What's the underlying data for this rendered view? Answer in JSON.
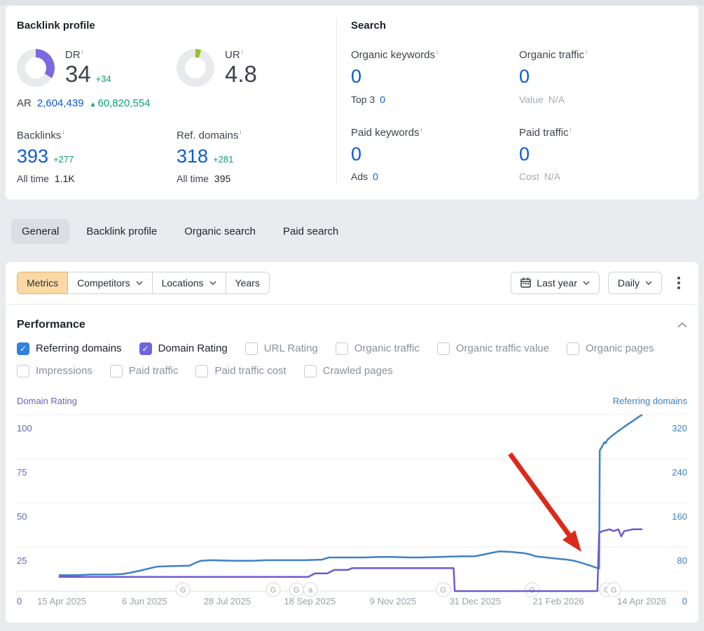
{
  "info_icon": "i",
  "colors": {
    "accent_blue": "#0b5cd5",
    "accent_green": "#0e9f6e",
    "dr_gauge_purple": "#7c69dd",
    "ur_gauge_green": "#97c22f",
    "checkbox_blue": "#2e80e0",
    "checkbox_purple": "#6f63e0",
    "chart_blue_line": "#4181c4",
    "chart_purple_line": "#6e5bd0",
    "arrow_red": "#dc2a1a",
    "metrics_button_bg": "#fcd9a4"
  },
  "backlink_profile": {
    "title": "Backlink profile",
    "dr": {
      "label": "DR",
      "value": "34",
      "delta": "+34"
    },
    "ur": {
      "label": "UR",
      "value": "4.8"
    },
    "ar": {
      "label": "AR",
      "value": "2,604,439",
      "delta": "60,820,554"
    },
    "backlinks": {
      "label": "Backlinks",
      "value": "393",
      "delta": "+277",
      "all_time_label": "All time",
      "all_time_value": "1.1K"
    },
    "ref_domains": {
      "label": "Ref. domains",
      "value": "318",
      "delta": "+281",
      "all_time_label": "All time",
      "all_time_value": "395"
    }
  },
  "search": {
    "title": "Search",
    "organic_keywords": {
      "label": "Organic keywords",
      "value": "0",
      "sub_label": "Top 3",
      "sub_value": "0"
    },
    "organic_traffic": {
      "label": "Organic traffic",
      "value": "0",
      "sub_label": "Value",
      "sub_value": "N/A"
    },
    "paid_keywords": {
      "label": "Paid keywords",
      "value": "0",
      "sub_label": "Ads",
      "sub_value": "0"
    },
    "paid_traffic": {
      "label": "Paid traffic",
      "value": "0",
      "sub_label": "Cost",
      "sub_value": "N/A"
    }
  },
  "tabs": [
    {
      "label": "General",
      "active": true
    },
    {
      "label": "Backlink profile",
      "active": false
    },
    {
      "label": "Organic search",
      "active": false
    },
    {
      "label": "Paid search",
      "active": false
    }
  ],
  "toolbar": {
    "metrics": "Metrics",
    "competitors": "Competitors",
    "locations": "Locations",
    "years": "Years",
    "range": "Last year",
    "granularity": "Daily"
  },
  "performance": {
    "title": "Performance",
    "checkboxes": [
      {
        "label": "Referring domains",
        "checked": true,
        "accent": "#2e80e0"
      },
      {
        "label": "Domain Rating",
        "checked": true,
        "accent": "#6f63e0"
      },
      {
        "label": "URL Rating",
        "checked": false
      },
      {
        "label": "Organic traffic",
        "checked": false
      },
      {
        "label": "Organic traffic value",
        "checked": false
      },
      {
        "label": "Organic pages",
        "checked": false
      },
      {
        "label": "Impressions",
        "checked": false
      },
      {
        "label": "Paid traffic",
        "checked": false
      },
      {
        "label": "Paid traffic cost",
        "checked": false
      },
      {
        "label": "Crawled pages",
        "checked": false
      }
    ]
  },
  "chart_data": {
    "type": "line",
    "left_axis": {
      "label": "Domain Rating",
      "color": "#6866b8",
      "ticks": [
        0,
        25,
        50,
        75,
        100
      ],
      "max": 100
    },
    "right_axis": {
      "label": "Referring domains",
      "color": "#3b82c8",
      "ticks": [
        0,
        80,
        160,
        240,
        320
      ],
      "max": 320
    },
    "x_ticks": [
      {
        "f": 0.004,
        "label": "15 Apr 2025"
      },
      {
        "f": 0.146,
        "label": "6 Jun 2025"
      },
      {
        "f": 0.288,
        "label": "28 Jul 2025"
      },
      {
        "f": 0.43,
        "label": "18 Sep 2025"
      },
      {
        "f": 0.573,
        "label": "9 Nov 2025"
      },
      {
        "f": 0.714,
        "label": "31 Dec 2025"
      },
      {
        "f": 0.857,
        "label": "21 Feb 2026"
      },
      {
        "f": 1.0,
        "label": "14 Apr 2026"
      }
    ],
    "series": [
      {
        "name": "Referring domains",
        "axis": "right",
        "color": "#4181c4",
        "points": [
          [
            0.0,
            29
          ],
          [
            0.03,
            29
          ],
          [
            0.054,
            30
          ],
          [
            0.09,
            30
          ],
          [
            0.108,
            31
          ],
          [
            0.12,
            33
          ],
          [
            0.138,
            37
          ],
          [
            0.15,
            40
          ],
          [
            0.166,
            44
          ],
          [
            0.18,
            45
          ],
          [
            0.223,
            46
          ],
          [
            0.235,
            52
          ],
          [
            0.243,
            55
          ],
          [
            0.259,
            56
          ],
          [
            0.301,
            55
          ],
          [
            0.331,
            55
          ],
          [
            0.355,
            56
          ],
          [
            0.42,
            56
          ],
          [
            0.451,
            57
          ],
          [
            0.463,
            61
          ],
          [
            0.523,
            61
          ],
          [
            0.55,
            62
          ],
          [
            0.572,
            62
          ],
          [
            0.6,
            61
          ],
          [
            0.62,
            61
          ],
          [
            0.65,
            62
          ],
          [
            0.69,
            63
          ],
          [
            0.712,
            63
          ],
          [
            0.728,
            66
          ],
          [
            0.745,
            70
          ],
          [
            0.756,
            72
          ],
          [
            0.776,
            71
          ],
          [
            0.797,
            69
          ],
          [
            0.81,
            66
          ],
          [
            0.818,
            63
          ],
          [
            0.836,
            61
          ],
          [
            0.86,
            58
          ],
          [
            0.872,
            57
          ],
          [
            0.884,
            55
          ],
          [
            0.9,
            50
          ],
          [
            0.915,
            45
          ],
          [
            0.923,
            42
          ],
          [
            0.927,
            41
          ],
          [
            0.928,
            255
          ],
          [
            0.932,
            262
          ],
          [
            0.936,
            270
          ],
          [
            0.938,
            268
          ],
          [
            0.941,
            274
          ],
          [
            0.947,
            280
          ],
          [
            0.957,
            288
          ],
          [
            0.969,
            297
          ],
          [
            0.977,
            303
          ],
          [
            0.987,
            310
          ],
          [
            0.995,
            316
          ],
          [
            1.0,
            319
          ]
        ]
      },
      {
        "name": "Domain Rating",
        "axis": "left",
        "color": "#6e5bd0",
        "points": [
          [
            0.0,
            8
          ],
          [
            0.427,
            8
          ],
          [
            0.439,
            10
          ],
          [
            0.46,
            10
          ],
          [
            0.472,
            12
          ],
          [
            0.495,
            12
          ],
          [
            0.503,
            13
          ],
          [
            0.677,
            13
          ],
          [
            0.679,
            0
          ],
          [
            0.924,
            0
          ],
          [
            0.927,
            33
          ],
          [
            0.933,
            34
          ],
          [
            0.945,
            35
          ],
          [
            0.952,
            34
          ],
          [
            0.96,
            35
          ],
          [
            0.965,
            31
          ],
          [
            0.97,
            34
          ],
          [
            0.985,
            35
          ],
          [
            1.0,
            35
          ]
        ]
      }
    ],
    "markers": [
      {
        "f": 0.212,
        "label": "G"
      },
      {
        "f": 0.367,
        "label": "G"
      },
      {
        "f": 0.407,
        "label": "G"
      },
      {
        "f": 0.431,
        "label": "a"
      },
      {
        "f": 0.659,
        "label": "G"
      },
      {
        "f": 0.812,
        "label": "G"
      },
      {
        "f": 0.94,
        "label": "G"
      },
      {
        "f": 0.952,
        "label": "G"
      }
    ],
    "annotation_arrow": {
      "color": "#dc2a1a",
      "from": [
        704,
        85
      ],
      "line_end": [
        790,
        203
      ],
      "head": [
        [
          806,
          225
        ],
        [
          779,
          208
        ],
        [
          797,
          194
        ]
      ]
    }
  }
}
